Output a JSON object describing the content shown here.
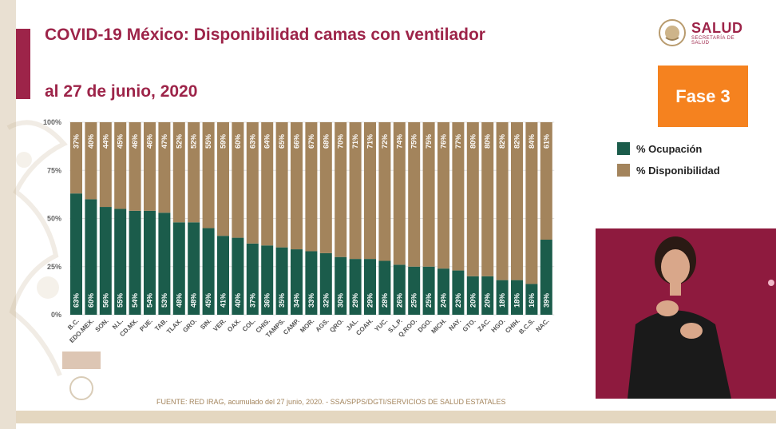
{
  "title_line1": "COVID-19 México: Disponibilidad camas con ventilador",
  "title_line2": "al 27 de junio, 2020",
  "logo_text": "SALUD",
  "logo_subtext": "SECRETARÍA DE SALUD",
  "phase_label": "Fase 3",
  "legend": [
    {
      "label": "% Ocupación",
      "color": "#1b5c4b"
    },
    {
      "label": "% Disponibilidad",
      "color": "#a3845c"
    }
  ],
  "footer": "FUENTE: RED IRAG, acumulado del 27 junio, 2020. -  SSA/SPPS/DGTI/SERVICIOS DE SALUD ESTATALES",
  "chart_data": {
    "type": "bar",
    "stacked": true,
    "categories": [
      "B.C.",
      "EDO.MEX.",
      "SON.",
      "N.L.",
      "CD.MX.",
      "PUE.",
      "TAB.",
      "TLAX.",
      "GRO.",
      "SIN.",
      "VER.",
      "OAX.",
      "COL.",
      "CHIS.",
      "TAMPS.",
      "CAMP.",
      "MOR.",
      "AGS.",
      "QRO.",
      "JAL.",
      "COAH.",
      "YUC.",
      "S.L.P.",
      "Q.ROO.",
      "DGO.",
      "MICH.",
      "NAY.",
      "GTO.",
      "ZAC.",
      "HGO.",
      "CHIH.",
      "B.C.S.",
      "NAC."
    ],
    "series": [
      {
        "name": "% Ocupación",
        "color": "#1b5c4b",
        "values": [
          63,
          60,
          56,
          55,
          54,
          54,
          53,
          48,
          48,
          45,
          41,
          40,
          37,
          36,
          35,
          34,
          33,
          32,
          30,
          29,
          29,
          28,
          26,
          25,
          25,
          24,
          23,
          20,
          20,
          18,
          18,
          16,
          39
        ]
      },
      {
        "name": "% Disponibilidad",
        "color": "#a3845c",
        "values": [
          37,
          40,
          44,
          45,
          46,
          46,
          47,
          52,
          52,
          55,
          59,
          60,
          63,
          64,
          65,
          66,
          67,
          68,
          70,
          71,
          71,
          72,
          74,
          75,
          75,
          76,
          77,
          80,
          80,
          82,
          82,
          84,
          61
        ]
      }
    ],
    "y_ticks": [
      "0%",
      "25%",
      "50%",
      "75%",
      "100%"
    ],
    "ylim": [
      0,
      100
    ],
    "legend_position": "right"
  }
}
